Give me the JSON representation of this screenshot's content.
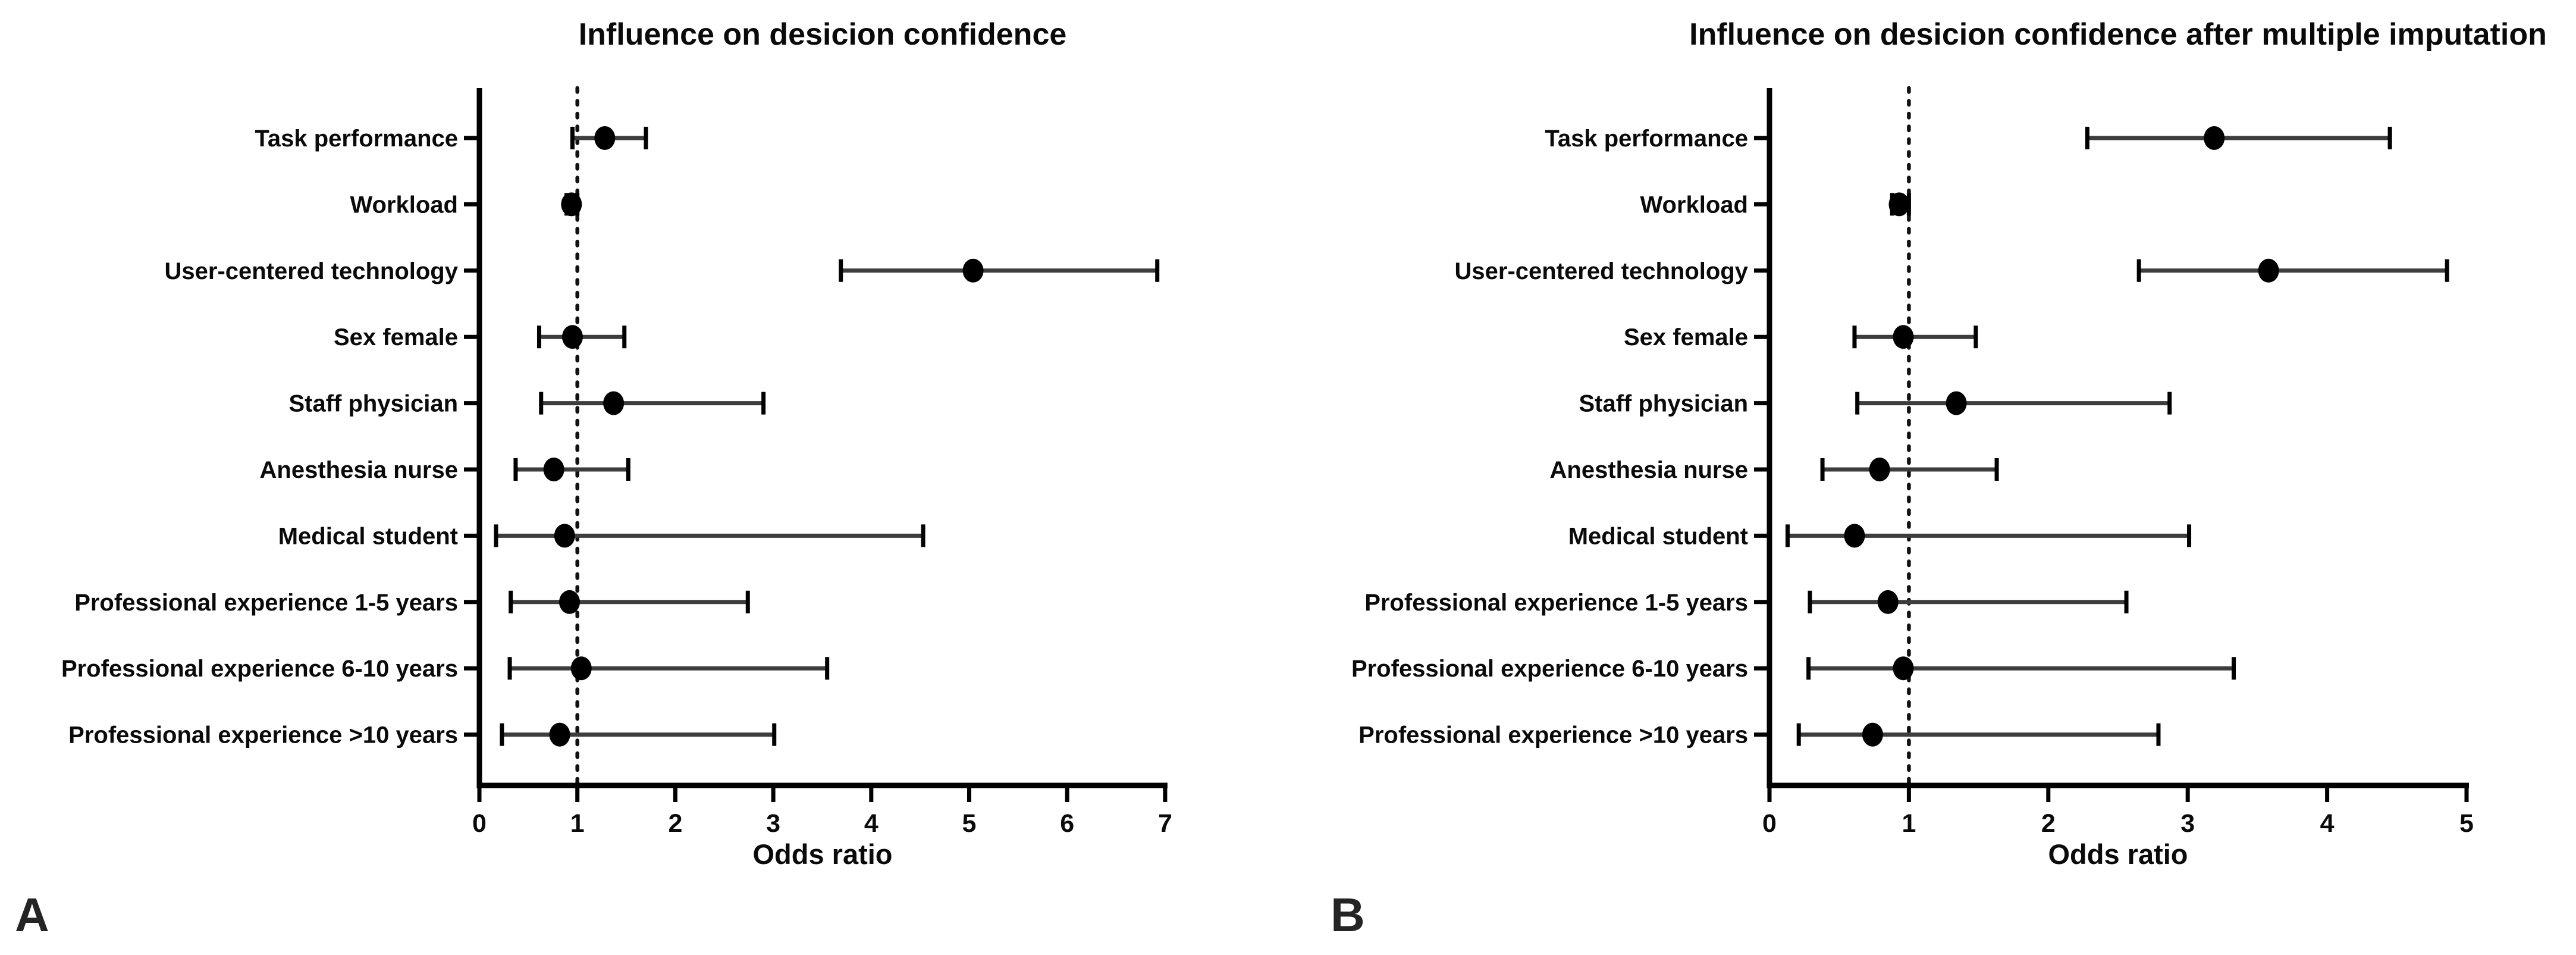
{
  "figure": {
    "background": "#ffffff",
    "colors": {
      "ink": "#000000",
      "error_bar_line": "#3d3d3d",
      "marker": "#000000",
      "reference_line": "#111111",
      "panel_letter": "#242424"
    }
  },
  "chart_data": [
    {
      "type": "scatter",
      "variant": "forest-plot",
      "title": "Influence on desicion confidence",
      "xlabel": "Odds ratio",
      "panel_label": "A",
      "xlim": [
        0,
        7
      ],
      "xticks": [
        0,
        1,
        2,
        3,
        4,
        5,
        6,
        7
      ],
      "reference_line_x": 1,
      "grid": false,
      "categories": [
        "Task performance",
        "Workload",
        "User-centered technology",
        "Sex female",
        "Staff physician",
        "Anesthesia nurse",
        "Medical student",
        "Professional experience 1-5 years",
        "Professional experience 6-10 years",
        "Professional experience >10 years"
      ],
      "odds_ratio": [
        1.28,
        0.94,
        5.04,
        0.95,
        1.37,
        0.76,
        0.87,
        0.92,
        1.04,
        0.82
      ],
      "ci_low": [
        0.95,
        0.89,
        3.69,
        0.61,
        0.63,
        0.37,
        0.17,
        0.32,
        0.31,
        0.23
      ],
      "ci_high": [
        1.7,
        1.0,
        6.92,
        1.48,
        2.9,
        1.52,
        4.53,
        2.74,
        3.55,
        3.01
      ]
    },
    {
      "type": "scatter",
      "variant": "forest-plot",
      "title": "Influence on desicion confidence after multiple imputation",
      "xlabel": "Odds ratio",
      "panel_label": "B",
      "xlim": [
        0,
        5
      ],
      "xticks": [
        0,
        1,
        2,
        3,
        4,
        5
      ],
      "reference_line_x": 1,
      "grid": false,
      "categories": [
        "Task performance",
        "Workload",
        "User-centered technology",
        "Sex female",
        "Staff physician",
        "Anesthesia nurse",
        "Medical student",
        "Professional experience 1-5 years",
        "Professional experience 6-10 years",
        "Professional experience >10 years"
      ],
      "odds_ratio": [
        3.19,
        0.93,
        3.58,
        0.96,
        1.34,
        0.79,
        0.61,
        0.85,
        0.96,
        0.74
      ],
      "ci_low": [
        2.28,
        0.88,
        2.65,
        0.61,
        0.63,
        0.38,
        0.13,
        0.29,
        0.28,
        0.21
      ],
      "ci_high": [
        4.45,
        1.0,
        4.86,
        1.48,
        2.87,
        1.63,
        3.01,
        2.56,
        3.33,
        2.79
      ]
    }
  ]
}
